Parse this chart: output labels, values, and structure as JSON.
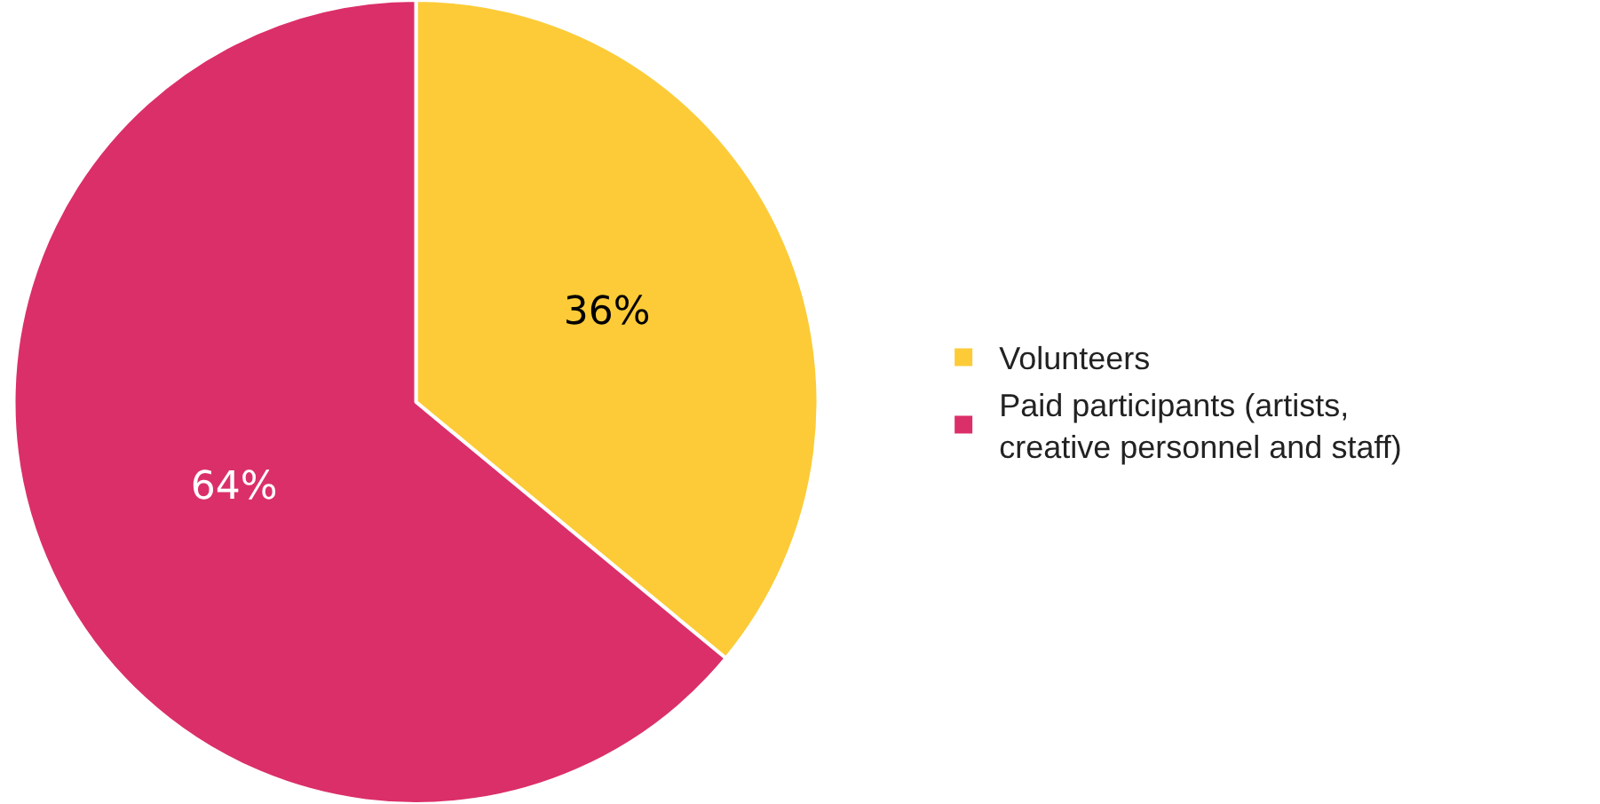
{
  "chart_data": {
    "type": "pie",
    "categories": [
      "Volunteers",
      "Paid participants (artists, creative personnel and staff)"
    ],
    "values": [
      36,
      64
    ],
    "colors": [
      "#fccb37",
      "#db2f69"
    ],
    "value_labels": [
      "36%",
      "64%"
    ],
    "legend": "right"
  }
}
